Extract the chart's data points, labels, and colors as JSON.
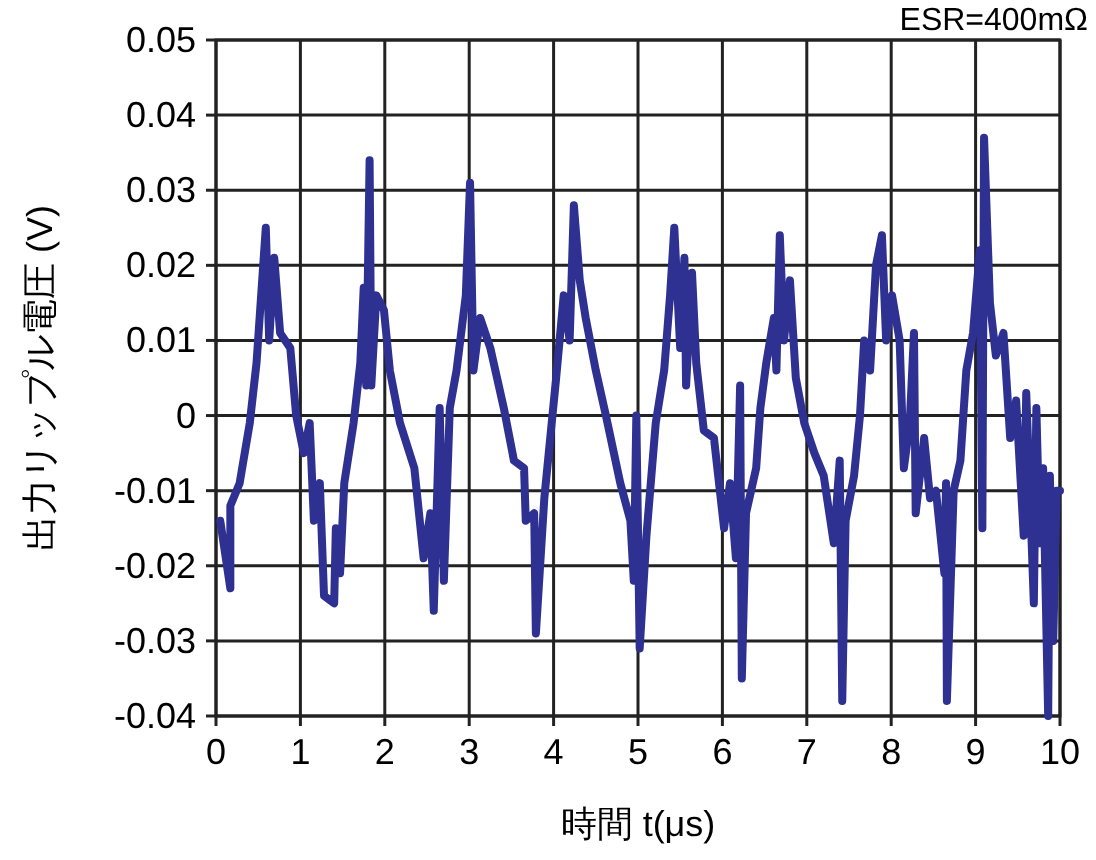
{
  "chart_data": {
    "type": "line",
    "xlabel": "時間  t(μs)",
    "ylabel": "出力リップル電圧 (V)",
    "annotations": [
      "ESR=400mΩ"
    ],
    "xlim": [
      0,
      10
    ],
    "ylim": [
      -0.04,
      0.05
    ],
    "xticks": [
      0,
      1,
      2,
      3,
      4,
      5,
      6,
      7,
      8,
      9,
      10
    ],
    "yticks": [
      -0.04,
      -0.03,
      -0.02,
      -0.01,
      0,
      0.01,
      0.02,
      0.03,
      0.04,
      0.05
    ],
    "grid": true,
    "marker": "none",
    "line_style": "solid",
    "x": [
      0.05,
      0.17,
      0.17,
      0.28,
      0.4,
      0.48,
      0.59,
      0.63,
      0.69,
      0.76,
      0.88,
      0.95,
      1.04,
      1.11,
      1.16,
      1.23,
      1.28,
      1.4,
      1.42,
      1.47,
      1.52,
      1.63,
      1.71,
      1.75,
      1.78,
      1.82,
      1.84,
      1.9,
      1.99,
      2.06,
      2.18,
      2.35,
      2.46,
      2.54,
      2.58,
      2.65,
      2.7,
      2.77,
      2.85,
      2.96,
      3.01,
      3.05,
      3.13,
      3.25,
      3.41,
      3.53,
      3.65,
      3.67,
      3.77,
      3.79,
      3.89,
      3.96,
      4.03,
      4.12,
      4.19,
      4.24,
      4.31,
      4.38,
      4.5,
      4.62,
      4.79,
      4.91,
      4.95,
      4.98,
      5.02,
      5.1,
      5.21,
      5.31,
      5.38,
      5.43,
      5.5,
      5.55,
      5.57,
      5.64,
      5.69,
      5.78,
      5.9,
      5.97,
      6.02,
      6.09,
      6.16,
      6.21,
      6.23,
      6.28,
      6.4,
      6.45,
      6.52,
      6.61,
      6.64,
      6.68,
      6.73,
      6.8,
      6.87,
      6.97,
      7.09,
      7.2,
      7.32,
      7.39,
      7.42,
      7.46,
      7.56,
      7.63,
      7.68,
      7.75,
      7.82,
      7.89,
      7.94,
      8.01,
      8.1,
      8.15,
      8.22,
      8.27,
      8.29,
      8.39,
      8.46,
      8.53,
      8.63,
      8.65,
      8.66,
      8.74,
      8.82,
      8.89,
      8.97,
      9.05,
      9.08,
      9.1,
      9.17,
      9.24,
      9.33,
      9.41,
      9.48,
      9.57,
      9.6,
      9.69,
      9.72,
      9.76,
      9.8,
      9.86,
      9.88,
      9.92,
      9.96,
      10.0
    ],
    "series": [
      {
        "color": "#2e3192",
        "values": [
          -0.014,
          -0.023,
          -0.012,
          -0.009,
          -0.001,
          0.007,
          0.025,
          0.01,
          0.021,
          0.011,
          0.009,
          0.0,
          -0.005,
          -0.001,
          -0.014,
          -0.009,
          -0.024,
          -0.025,
          -0.015,
          -0.021,
          -0.009,
          -0.001,
          0.007,
          0.017,
          0.004,
          0.034,
          0.004,
          0.016,
          0.014,
          0.006,
          -0.001,
          -0.007,
          -0.019,
          -0.013,
          -0.026,
          0.001,
          -0.022,
          0.001,
          0.006,
          0.016,
          0.031,
          0.006,
          0.013,
          0.009,
          0.001,
          -0.006,
          -0.007,
          -0.014,
          -0.013,
          -0.029,
          -0.011,
          -0.003,
          0.005,
          0.016,
          0.01,
          0.028,
          0.018,
          0.013,
          0.006,
          0.0,
          -0.009,
          -0.014,
          -0.022,
          0.0,
          -0.031,
          -0.016,
          -0.001,
          0.006,
          0.016,
          0.025,
          0.009,
          0.021,
          0.004,
          0.019,
          0.007,
          -0.002,
          -0.003,
          -0.01,
          -0.015,
          -0.009,
          -0.019,
          0.004,
          -0.035,
          -0.013,
          -0.007,
          0.001,
          0.007,
          0.013,
          0.006,
          0.024,
          0.01,
          0.018,
          0.005,
          -0.001,
          -0.005,
          -0.008,
          -0.017,
          -0.006,
          -0.038,
          -0.014,
          -0.008,
          0.0,
          0.01,
          0.006,
          0.02,
          0.024,
          0.01,
          0.016,
          0.01,
          -0.007,
          -0.001,
          0.011,
          -0.013,
          -0.003,
          -0.011,
          -0.01,
          -0.021,
          -0.009,
          -0.038,
          -0.01,
          -0.006,
          0.006,
          0.011,
          0.022,
          -0.015,
          0.037,
          0.015,
          0.008,
          0.011,
          -0.003,
          0.002,
          -0.016,
          0.003,
          -0.025,
          0.001,
          -0.017,
          -0.007,
          -0.04,
          -0.008,
          -0.03,
          -0.01,
          -0.01
        ]
      }
    ]
  }
}
